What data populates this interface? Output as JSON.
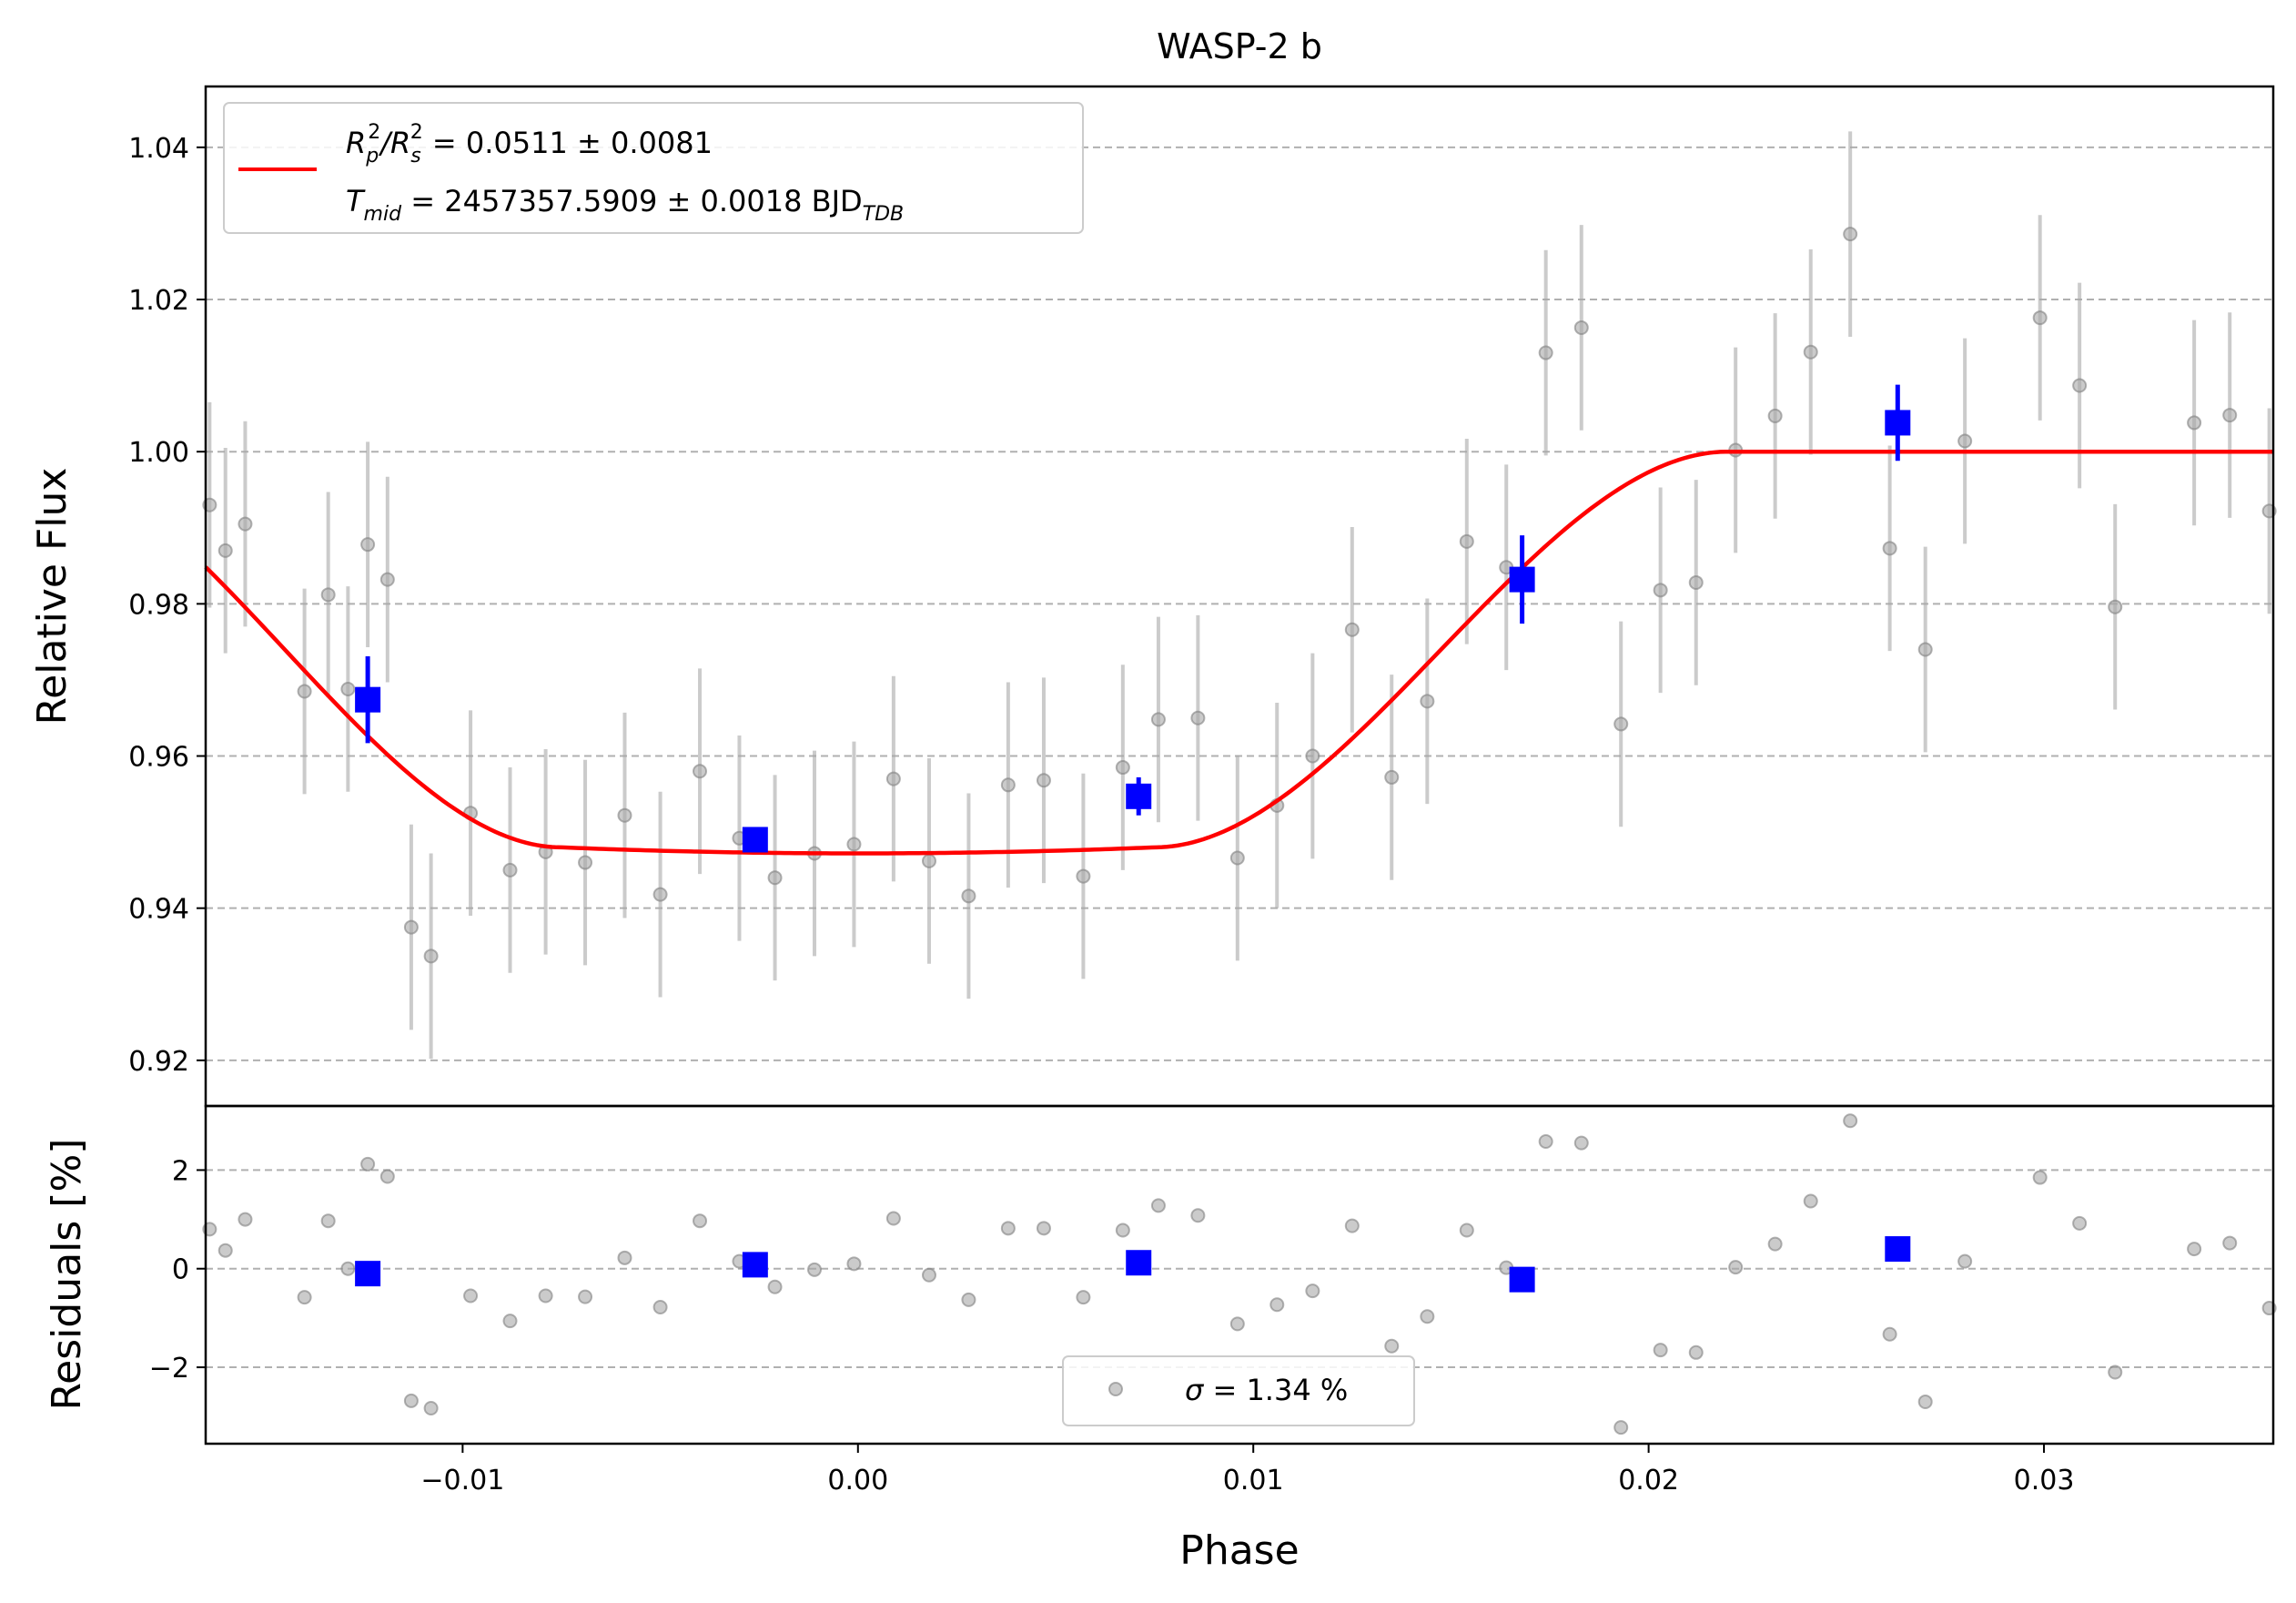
{
  "chart_data": {
    "type": "scatter",
    "title": "WASP-2 b",
    "xlabel": "Phase",
    "top_panel": {
      "ylabel": "Relative Flux",
      "xlim": [
        -0.0165,
        0.0358
      ],
      "ylim": [
        0.914,
        1.048
      ],
      "yticks": [
        0.92,
        0.94,
        0.96,
        0.98,
        1.0,
        1.02,
        1.04
      ],
      "ytick_labels": [
        "0.92",
        "0.94",
        "0.96",
        "0.98",
        "1.00",
        "1.02",
        "1.04"
      ],
      "grid": "horizontal dashed",
      "legend_placement": "upper-left",
      "legend": {
        "line1_a": "R",
        "line1_b": "p",
        "line1_c": "2",
        "line1_d": "/R",
        "line1_e": "s",
        "line1_f": "2",
        "line1_g": " = 0.0511 ± 0.0081",
        "line2_a": "T",
        "line2_b": "mid",
        "line2_c": " = 2457357.5909 ± 0.0018 BJD",
        "line2_d": "TDB"
      },
      "series": [
        {
          "kind": "data",
          "color": "#a9a9a9",
          "points": [
            [
              -0.0164,
              0.993,
              0.0135
            ],
            [
              -0.016,
              0.987,
              0.0135
            ],
            [
              -0.0155,
              0.9905,
              0.0135
            ],
            [
              -0.014,
              0.9685,
              0.0135
            ],
            [
              -0.0134,
              0.9812,
              0.0135
            ],
            [
              -0.0129,
              0.9688,
              0.0135
            ],
            [
              -0.0124,
              0.9878,
              0.0135
            ],
            [
              -0.0119,
              0.9832,
              0.0135
            ],
            [
              -0.0113,
              0.9375,
              0.0135
            ],
            [
              -0.0108,
              0.9337,
              0.0135
            ],
            [
              -0.0098,
              0.9525,
              0.0135
            ],
            [
              -0.0088,
              0.945,
              0.0135
            ],
            [
              -0.0079,
              0.9474,
              0.0135
            ],
            [
              -0.0069,
              0.946,
              0.0135
            ],
            [
              -0.0059,
              0.9522,
              0.0135
            ],
            [
              -0.005,
              0.9418,
              0.0135
            ],
            [
              -0.004,
              0.958,
              0.0135
            ],
            [
              -0.003,
              0.9492,
              0.0135
            ],
            [
              -0.0021,
              0.944,
              0.0135
            ],
            [
              -0.0011,
              0.9472,
              0.0135
            ],
            [
              -0.0001,
              0.9484,
              0.0135
            ],
            [
              0.0009,
              0.957,
              0.0135
            ],
            [
              0.0018,
              0.9462,
              0.0135
            ],
            [
              0.0028,
              0.9416,
              0.0135
            ],
            [
              0.0038,
              0.9562,
              0.0135
            ],
            [
              0.0047,
              0.9568,
              0.0135
            ],
            [
              0.0057,
              0.9442,
              0.0135
            ],
            [
              0.0067,
              0.9585,
              0.0135
            ],
            [
              0.0076,
              0.9648,
              0.0135
            ],
            [
              0.0086,
              0.965,
              0.0135
            ],
            [
              0.0096,
              0.9466,
              0.0135
            ],
            [
              0.0106,
              0.9535,
              0.0135
            ],
            [
              0.0115,
              0.96,
              0.0135
            ],
            [
              0.0125,
              0.9766,
              0.0135
            ],
            [
              0.0135,
              0.9572,
              0.0135
            ],
            [
              0.0144,
              0.9672,
              0.0135
            ],
            [
              0.0154,
              0.9882,
              0.0135
            ],
            [
              0.0164,
              0.9848,
              0.0135
            ],
            [
              0.0174,
              1.013,
              0.0135
            ],
            [
              0.0183,
              1.0163,
              0.0135
            ],
            [
              0.0193,
              0.9642,
              0.0135
            ],
            [
              0.0203,
              0.9818,
              0.0135
            ],
            [
              0.0212,
              0.9828,
              0.0135
            ],
            [
              0.0222,
              1.0002,
              0.0135
            ],
            [
              0.0232,
              1.0047,
              0.0135
            ],
            [
              0.0241,
              1.0131,
              0.0135
            ],
            [
              0.0251,
              1.0286,
              0.0135
            ],
            [
              0.0261,
              0.9873,
              0.0135
            ],
            [
              0.027,
              0.974,
              0.0135
            ],
            [
              0.028,
              1.0014,
              0.0135
            ],
            [
              0.0299,
              1.0176,
              0.0135
            ],
            [
              0.0309,
              1.0087,
              0.0135
            ],
            [
              0.0318,
              0.9796,
              0.0135
            ],
            [
              0.0338,
              1.0038,
              0.0135
            ],
            [
              0.0347,
              1.0048,
              0.0135
            ],
            [
              0.0357,
              0.9922,
              0.0135
            ]
          ]
        },
        {
          "kind": "binned",
          "color": "#0000ff",
          "points": [
            [
              -0.0124,
              0.9674,
              0.0057
            ],
            [
              -0.0026,
              0.949,
              0.001
            ],
            [
              0.0071,
              0.9547,
              0.0025
            ],
            [
              0.0168,
              0.9832,
              0.0058
            ],
            [
              0.0263,
              1.0038,
              0.005
            ]
          ]
        },
        {
          "kind": "model",
          "color": "#ff0000",
          "depth": 0.0528,
          "x_min": -0.0165,
          "x_max": 0.0358,
          "t1": -0.0215,
          "t2": -0.0075,
          "t3": 0.0075,
          "t4": 0.022
        }
      ]
    },
    "bottom_panel": {
      "ylabel": "Residuals [%]",
      "ylim": [
        -3.55,
        3.3
      ],
      "yticks": [
        -2,
        0,
        2
      ],
      "ytick_labels": [
        "−2",
        "0",
        "2"
      ],
      "xticks": [
        -0.01,
        0.0,
        0.01,
        0.02,
        0.03
      ],
      "xtick_labels": [
        "−0.01",
        "0.00",
        "0.01",
        "0.02",
        "0.03"
      ],
      "grid": "horizontal dashed",
      "legend_placement": "lower-center",
      "legend": {
        "sigma_symbol": "σ",
        "sigma_text": " = 1.34 %"
      },
      "residuals": [
        [
          -0.0164,
          0.8
        ],
        [
          -0.016,
          0.37
        ],
        [
          -0.0155,
          1.0
        ],
        [
          -0.014,
          -0.58
        ],
        [
          -0.0134,
          0.97
        ],
        [
          -0.0129,
          0.0
        ],
        [
          -0.0124,
          2.12
        ],
        [
          -0.0119,
          1.87
        ],
        [
          -0.0113,
          -2.68
        ],
        [
          -0.0108,
          -2.83
        ],
        [
          -0.0098,
          -0.55
        ],
        [
          -0.0088,
          -1.06
        ],
        [
          -0.0079,
          -0.55
        ],
        [
          -0.0069,
          -0.57
        ],
        [
          -0.0059,
          0.22
        ],
        [
          -0.005,
          -0.78
        ],
        [
          -0.004,
          0.97
        ],
        [
          -0.003,
          0.15
        ],
        [
          -0.0021,
          -0.37
        ],
        [
          -0.0011,
          -0.02
        ],
        [
          -0.0001,
          0.1
        ],
        [
          0.0009,
          1.02
        ],
        [
          0.0018,
          -0.13
        ],
        [
          0.0028,
          -0.63
        ],
        [
          0.0038,
          0.82
        ],
        [
          0.0047,
          0.82
        ],
        [
          0.0057,
          -0.58
        ],
        [
          0.0067,
          0.78
        ],
        [
          0.0076,
          1.28
        ],
        [
          0.0086,
          1.08
        ],
        [
          0.0096,
          -1.12
        ],
        [
          0.0106,
          -0.73
        ],
        [
          0.0115,
          -0.45
        ],
        [
          0.0125,
          0.87
        ],
        [
          0.0135,
          -1.57
        ],
        [
          0.0144,
          -0.97
        ],
        [
          0.0154,
          0.78
        ],
        [
          0.0164,
          0.02
        ],
        [
          0.0174,
          2.58
        ],
        [
          0.0183,
          2.55
        ],
        [
          0.0193,
          -3.22
        ],
        [
          0.0203,
          -1.65
        ],
        [
          0.0212,
          -1.7
        ],
        [
          0.0222,
          0.03
        ],
        [
          0.0232,
          0.5
        ],
        [
          0.0241,
          1.37
        ],
        [
          0.0251,
          3.0
        ],
        [
          0.0261,
          -1.33
        ],
        [
          0.027,
          -2.7
        ],
        [
          0.028,
          0.15
        ],
        [
          0.0299,
          1.85
        ],
        [
          0.0309,
          0.92
        ],
        [
          0.0318,
          -2.1
        ],
        [
          0.0338,
          0.4
        ],
        [
          0.0347,
          0.52
        ],
        [
          0.0357,
          -0.8
        ]
      ],
      "binned_residuals": [
        [
          -0.0124,
          -0.1
        ],
        [
          -0.0026,
          0.08
        ],
        [
          0.0071,
          0.12
        ],
        [
          0.0168,
          -0.22
        ],
        [
          0.0263,
          0.4
        ]
      ]
    }
  }
}
